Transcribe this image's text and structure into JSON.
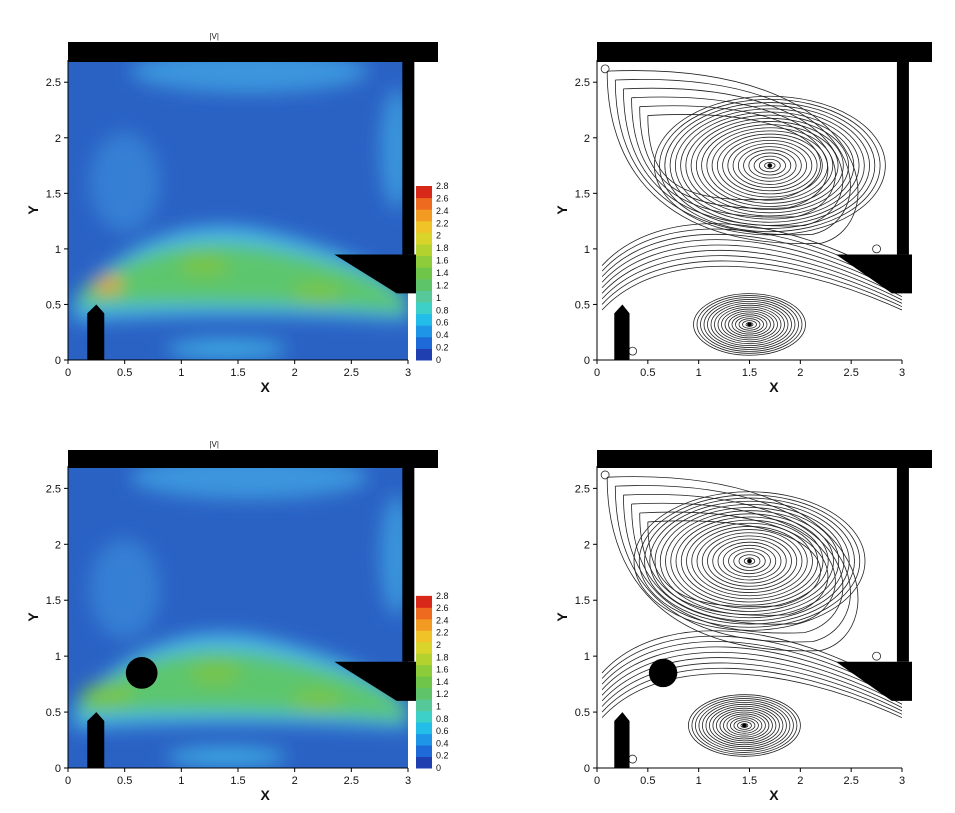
{
  "chart_data": [
    {
      "type": "heatmap",
      "title": "|V|",
      "xlabel": "X",
      "ylabel": "Y",
      "xlim": [
        0,
        3
      ],
      "ylim": [
        0,
        2.7
      ],
      "xticks": [
        "0",
        "0.5",
        "1",
        "1.5",
        "2",
        "2.5",
        "3"
      ],
      "yticks": [
        "0",
        "0.5",
        "1",
        "1.5",
        "2",
        "2.5"
      ],
      "colorbar": {
        "ticks": [
          "0",
          "0.2",
          "0.4",
          "0.6",
          "0.8",
          "1",
          "1.2",
          "1.4",
          "1.6",
          "1.8",
          "2",
          "2.2",
          "2.4",
          "2.6",
          "2.8"
        ],
        "colors": [
          "#1f3fb0",
          "#1e6ad8",
          "#1f95e8",
          "#22bde8",
          "#3dd0c8",
          "#56c89a",
          "#5ec46a",
          "#6fc44a",
          "#8ccc3a",
          "#b4d22e",
          "#d8d42a",
          "#f0c428",
          "#f39a22",
          "#ee6a1e",
          "#d8281a"
        ]
      },
      "hot_spots": [
        {
          "x": 0.35,
          "y": 0.68,
          "value": 2.6
        },
        {
          "x": 1.2,
          "y": 0.85,
          "value": 1.8
        },
        {
          "x": 2.2,
          "y": 0.6,
          "value": 1.7
        }
      ]
    },
    {
      "type": "scatter",
      "title": "",
      "xlabel": "X",
      "ylabel": "Y",
      "xlim": [
        0,
        3
      ],
      "ylim": [
        0,
        2.7
      ],
      "xticks": [
        "0",
        "0.5",
        "1",
        "1.5",
        "2",
        "2.5",
        "3"
      ],
      "yticks": [
        "0",
        "0.5",
        "1",
        "1.5",
        "2",
        "2.5"
      ],
      "vortex_centers": [
        {
          "x": 1.7,
          "y": 1.75
        },
        {
          "x": 1.5,
          "y": 0.32
        }
      ]
    },
    {
      "type": "heatmap",
      "title": "|V|",
      "xlabel": "X",
      "ylabel": "Y",
      "xlim": [
        0,
        3
      ],
      "ylim": [
        0,
        2.7
      ],
      "xticks": [
        "0",
        "0.5",
        "1",
        "1.5",
        "2",
        "2.5",
        "3"
      ],
      "yticks": [
        "0",
        "0.5",
        "1",
        "1.5",
        "2",
        "2.5"
      ],
      "colorbar": {
        "ticks": [
          "0",
          "0.2",
          "0.4",
          "0.6",
          "0.8",
          "1",
          "1.2",
          "1.4",
          "1.6",
          "1.8",
          "2",
          "2.2",
          "2.4",
          "2.6",
          "2.8"
        ],
        "colors": [
          "#1f3fb0",
          "#1e6ad8",
          "#1f95e8",
          "#22bde8",
          "#3dd0c8",
          "#56c89a",
          "#5ec46a",
          "#6fc44a",
          "#8ccc3a",
          "#b4d22e",
          "#d8d42a",
          "#f0c428",
          "#f39a22",
          "#ee6a1e",
          "#d8281a"
        ]
      },
      "cylinder": {
        "x": 0.65,
        "y": 0.85,
        "r": 0.14
      },
      "hot_spots": [
        {
          "x": 0.35,
          "y": 0.65,
          "value": 1.9
        },
        {
          "x": 1.3,
          "y": 0.85,
          "value": 1.8
        },
        {
          "x": 2.2,
          "y": 0.6,
          "value": 1.7
        }
      ]
    },
    {
      "type": "scatter",
      "title": "",
      "xlabel": "X",
      "ylabel": "Y",
      "xlim": [
        0,
        3
      ],
      "ylim": [
        0,
        2.7
      ],
      "xticks": [
        "0",
        "0.5",
        "1",
        "1.5",
        "2",
        "2.5",
        "3"
      ],
      "yticks": [
        "0",
        "0.5",
        "1",
        "1.5",
        "2",
        "2.5"
      ],
      "cylinder": {
        "x": 0.65,
        "y": 0.85,
        "r": 0.14
      },
      "vortex_centers": [
        {
          "x": 1.5,
          "y": 1.85
        },
        {
          "x": 1.45,
          "y": 0.38
        }
      ]
    }
  ]
}
